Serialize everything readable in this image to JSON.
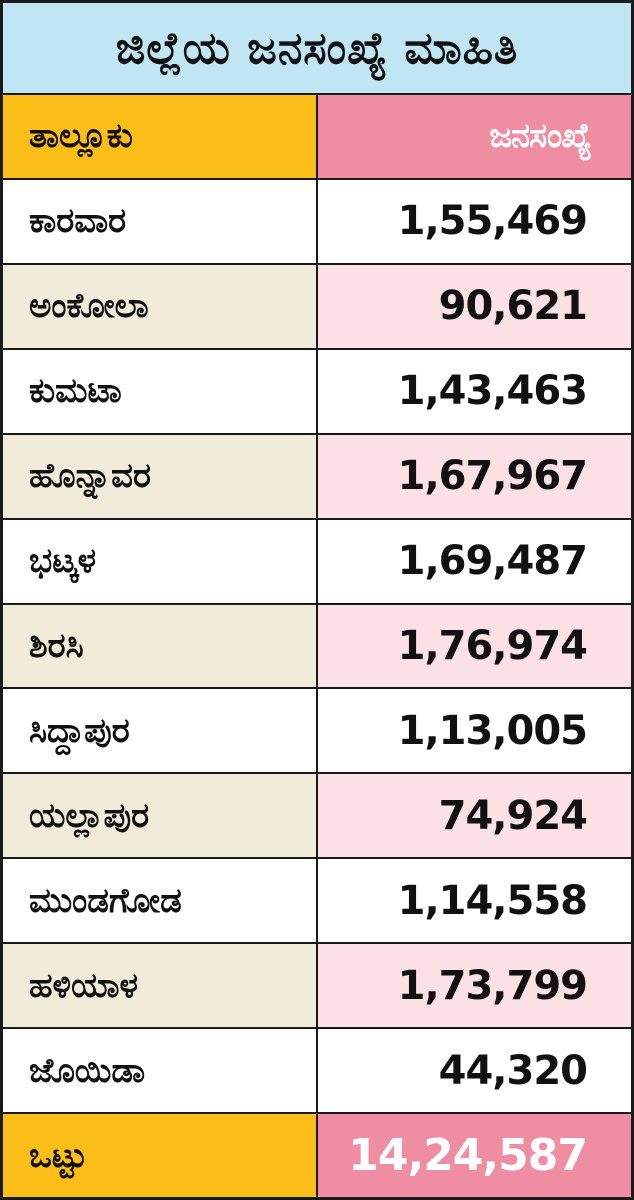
{
  "title": "ಜಿಲ್ಲೆಯ ಜನಸಂಖ್ಯೆ ಮಾಹಿತಿ",
  "header": {
    "taluk": "ತಾಲ್ಲೂಕು",
    "population": "ಜನಸಂಖ್ಯೆ"
  },
  "rows": [
    {
      "taluk": "ಕಾರವಾರ",
      "population": "1,55,469"
    },
    {
      "taluk": "ಅಂಕೋಲಾ",
      "population": "90,621"
    },
    {
      "taluk": "ಕುಮಟಾ",
      "population": "1,43,463"
    },
    {
      "taluk": "ಹೊನ್ನಾವರ",
      "population": "1,67,967"
    },
    {
      "taluk": "ಭಟ್ಕಳ",
      "population": "1,69,487"
    },
    {
      "taluk": "ಶಿರಸಿ",
      "population": "1,76,974"
    },
    {
      "taluk": "ಸಿದ್ದಾಪುರ",
      "population": "1,13,005"
    },
    {
      "taluk": "ಯಲ್ಲಾಪುರ",
      "population": "74,924"
    },
    {
      "taluk": "ಮುಂಡಗೋಡ",
      "population": "1,14,558"
    },
    {
      "taluk": "ಹಳಿಯಾಳ",
      "population": "1,73,799"
    },
    {
      "taluk": "ಜೊಯಿಡಾ",
      "population": "44,320"
    }
  ],
  "total": {
    "label": "ಒಟ್ಟು",
    "population": "14,24,587"
  },
  "colors": {
    "title_bg": "#bfe6f2",
    "header_left": "#fbbd18",
    "header_right": "#ef8ea2",
    "alt_left": "#f1ecda",
    "alt_right": "#fbe1e6"
  }
}
